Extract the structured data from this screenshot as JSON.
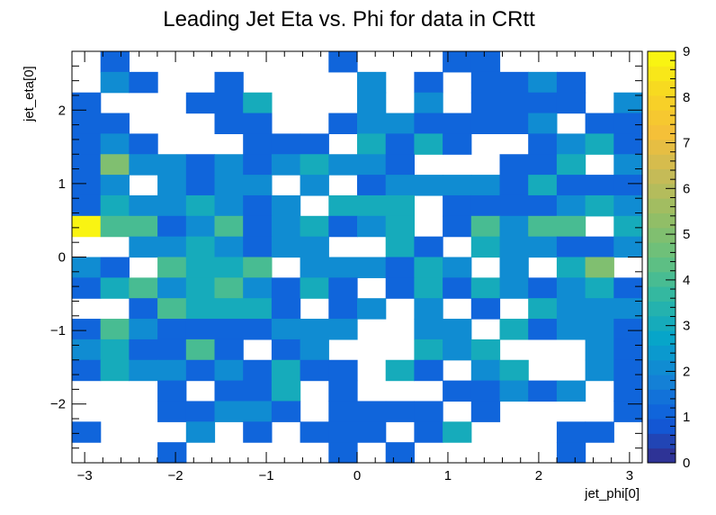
{
  "chart_data": {
    "type": "heatmap",
    "title": "Leading Jet Eta vs. Phi for data in CRtt",
    "xlabel": "jet_phi[0]",
    "ylabel": "jet_eta[0]",
    "xlim": [
      -3.14,
      3.14
    ],
    "ylim": [
      -2.8,
      2.8
    ],
    "zlim": [
      0,
      9
    ],
    "x_ticks": [
      -3,
      -2,
      -1,
      0,
      1,
      2,
      3
    ],
    "x_tick_labels": [
      "−3",
      "−2",
      "−1",
      "0",
      "1",
      "2",
      "3"
    ],
    "y_ticks": [
      -2,
      -1,
      0,
      1,
      2
    ],
    "y_tick_labels": [
      "−2",
      "−1",
      "0",
      "1",
      "2"
    ],
    "z_ticks": [
      0,
      1,
      2,
      3,
      4,
      5,
      6,
      7,
      8,
      9
    ],
    "z_tick_labels": [
      "0",
      "1",
      "2",
      "3",
      "4",
      "5",
      "6",
      "7",
      "8",
      "9"
    ],
    "bins": {
      "nx": 20,
      "ny": 20
    },
    "rows_top_to_bottom": [
      [
        0,
        1,
        0,
        0,
        0,
        0,
        0,
        0,
        0,
        1,
        0,
        0,
        0,
        1,
        1,
        0,
        0,
        0,
        0,
        0
      ],
      [
        0,
        2,
        1,
        0,
        0,
        1,
        0,
        0,
        0,
        0,
        2,
        0,
        1,
        0,
        1,
        1,
        2,
        1,
        0,
        0
      ],
      [
        1,
        0,
        0,
        0,
        1,
        1,
        3,
        0,
        0,
        0,
        2,
        0,
        2,
        0,
        1,
        1,
        1,
        1,
        0,
        2
      ],
      [
        1,
        1,
        0,
        0,
        0,
        1,
        1,
        0,
        0,
        1,
        2,
        2,
        1,
        1,
        1,
        1,
        2,
        0,
        1,
        1
      ],
      [
        1,
        2,
        1,
        0,
        0,
        0,
        1,
        1,
        1,
        0,
        3,
        1,
        3,
        1,
        0,
        0,
        1,
        2,
        3,
        1
      ],
      [
        1,
        5,
        2,
        2,
        1,
        2,
        1,
        2,
        3,
        2,
        2,
        1,
        0,
        0,
        0,
        1,
        1,
        3,
        0,
        2
      ],
      [
        1,
        2,
        0,
        2,
        1,
        2,
        2,
        0,
        2,
        0,
        1,
        2,
        2,
        2,
        2,
        1,
        3,
        1,
        1,
        1
      ],
      [
        1,
        3,
        2,
        2,
        3,
        2,
        1,
        2,
        0,
        3,
        3,
        3,
        0,
        1,
        1,
        1,
        1,
        2,
        3,
        2
      ],
      [
        9,
        4,
        4,
        1,
        2,
        4,
        1,
        2,
        3,
        1,
        2,
        3,
        0,
        1,
        4,
        2,
        4,
        4,
        0,
        3
      ],
      [
        0,
        0,
        2,
        2,
        3,
        2,
        1,
        2,
        2,
        0,
        0,
        3,
        1,
        0,
        3,
        2,
        2,
        1,
        1,
        2
      ],
      [
        2,
        1,
        0,
        4,
        3,
        3,
        4,
        0,
        2,
        2,
        2,
        1,
        3,
        2,
        0,
        2,
        0,
        3,
        5,
        0
      ],
      [
        1,
        3,
        4,
        2,
        3,
        4,
        2,
        1,
        3,
        1,
        0,
        1,
        3,
        1,
        3,
        2,
        1,
        2,
        3,
        1
      ],
      [
        0,
        0,
        1,
        4,
        3,
        3,
        3,
        1,
        0,
        1,
        2,
        0,
        2,
        0,
        1,
        0,
        3,
        2,
        2,
        2
      ],
      [
        1,
        4,
        2,
        1,
        1,
        1,
        1,
        2,
        2,
        2,
        0,
        0,
        2,
        2,
        0,
        3,
        1,
        2,
        2,
        1
      ],
      [
        2,
        3,
        1,
        1,
        4,
        1,
        0,
        1,
        2,
        0,
        0,
        0,
        3,
        2,
        3,
        0,
        0,
        0,
        2,
        1
      ],
      [
        1,
        3,
        2,
        2,
        1,
        2,
        1,
        3,
        1,
        1,
        0,
        3,
        1,
        0,
        2,
        3,
        0,
        0,
        2,
        1
      ],
      [
        0,
        0,
        0,
        1,
        0,
        1,
        1,
        3,
        0,
        1,
        0,
        0,
        0,
        1,
        1,
        2,
        1,
        2,
        0,
        1
      ],
      [
        0,
        0,
        0,
        1,
        1,
        2,
        2,
        1,
        0,
        1,
        1,
        1,
        1,
        0,
        1,
        0,
        0,
        0,
        0,
        1
      ],
      [
        1,
        0,
        0,
        0,
        2,
        0,
        1,
        0,
        1,
        1,
        1,
        0,
        1,
        3,
        0,
        0,
        0,
        1,
        1,
        0
      ],
      [
        0,
        0,
        0,
        1,
        0,
        0,
        0,
        0,
        0,
        1,
        0,
        1,
        0,
        0,
        0,
        0,
        0,
        1,
        0,
        0
      ]
    ]
  }
}
